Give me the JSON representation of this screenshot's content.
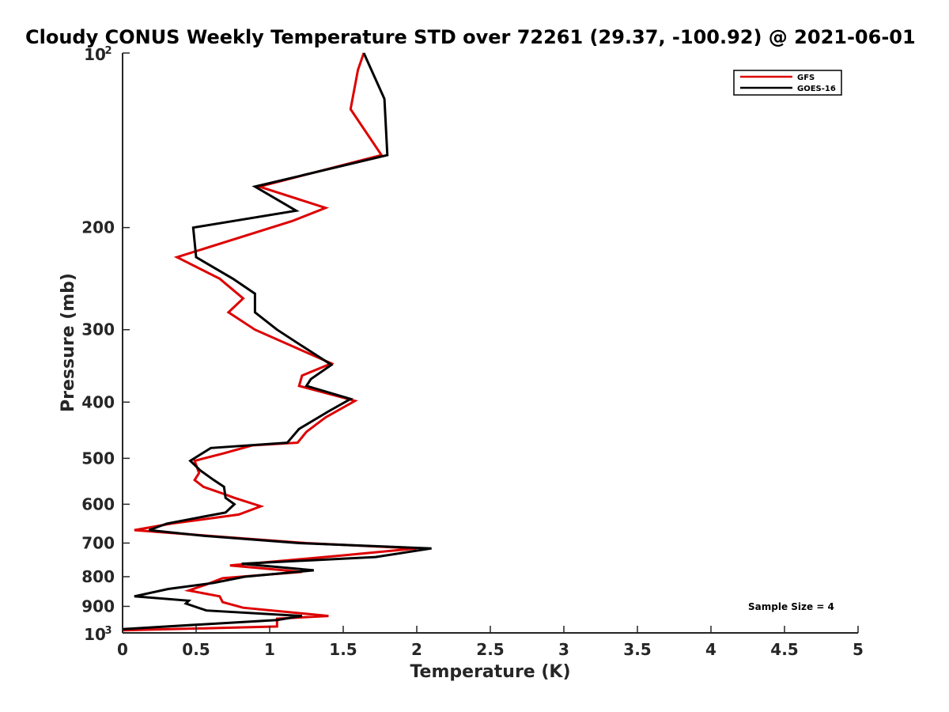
{
  "chart_data": {
    "type": "line",
    "title": "Cloudy CONUS Weekly Temperature STD over 72261 (29.37, -100.92) @ 2021-06-01",
    "xlabel": "Temperature (K)",
    "ylabel": "Pressure (mb)",
    "xlim": [
      0,
      5
    ],
    "ylim": [
      100,
      1000
    ],
    "y_scale": "log",
    "y_reversed": true,
    "x_ticks": [
      "0",
      "0.5",
      "1",
      "1.5",
      "2",
      "2.5",
      "3",
      "3.5",
      "4",
      "4.5",
      "5"
    ],
    "x_tick_values": [
      0,
      0.5,
      1,
      1.5,
      2,
      2.5,
      3,
      3.5,
      4,
      4.5,
      5
    ],
    "y_ticks": [
      {
        "value": 100,
        "base": "10",
        "exp": "2"
      },
      {
        "value": 200,
        "label": "200"
      },
      {
        "value": 300,
        "label": "300"
      },
      {
        "value": 400,
        "label": "400"
      },
      {
        "value": 500,
        "label": "500"
      },
      {
        "value": 600,
        "label": "600"
      },
      {
        "value": 700,
        "label": "700"
      },
      {
        "value": 800,
        "label": "800"
      },
      {
        "value": 900,
        "label": "900"
      },
      {
        "value": 1000,
        "base": "10",
        "exp": "3"
      }
    ],
    "grid": false,
    "legend_position": "top-right",
    "annotation": "Sample Size = 4",
    "series": [
      {
        "name": "GFS",
        "color": "#dd0000",
        "points": [
          [
            1.64,
            100
          ],
          [
            1.6,
            107
          ],
          [
            1.55,
            125
          ],
          [
            1.76,
            150
          ],
          [
            0.93,
            170
          ],
          [
            1.38,
            185
          ],
          [
            1.15,
            195
          ],
          [
            0.37,
            225
          ],
          [
            0.66,
            245
          ],
          [
            0.82,
            265
          ],
          [
            0.72,
            280
          ],
          [
            0.9,
            300
          ],
          [
            1.15,
            320
          ],
          [
            1.42,
            343
          ],
          [
            1.22,
            360
          ],
          [
            1.2,
            375
          ],
          [
            1.58,
            398
          ],
          [
            1.38,
            425
          ],
          [
            1.25,
            450
          ],
          [
            1.19,
            470
          ],
          [
            0.88,
            475
          ],
          [
            0.69,
            490
          ],
          [
            0.49,
            505
          ],
          [
            0.52,
            530
          ],
          [
            0.49,
            545
          ],
          [
            0.55,
            560
          ],
          [
            0.68,
            575
          ],
          [
            0.76,
            585
          ],
          [
            0.94,
            605
          ],
          [
            0.79,
            625
          ],
          [
            0.33,
            648
          ],
          [
            0.08,
            665
          ],
          [
            0.58,
            680
          ],
          [
            1.25,
            700
          ],
          [
            2.0,
            715
          ],
          [
            1.5,
            735
          ],
          [
            0.73,
            765
          ],
          [
            1.22,
            785
          ],
          [
            0.68,
            805
          ],
          [
            0.57,
            825
          ],
          [
            0.45,
            845
          ],
          [
            0.66,
            865
          ],
          [
            0.68,
            885
          ],
          [
            0.82,
            905
          ],
          [
            1.4,
            935
          ],
          [
            1.05,
            945
          ],
          [
            1.05,
            975
          ],
          [
            0.0,
            990
          ]
        ]
      },
      {
        "name": "GOES-16",
        "color": "#000000",
        "points": [
          [
            1.64,
            100
          ],
          [
            1.78,
            120
          ],
          [
            1.8,
            150
          ],
          [
            0.9,
            170
          ],
          [
            1.18,
            187
          ],
          [
            0.48,
            200
          ],
          [
            0.5,
            225
          ],
          [
            0.75,
            245
          ],
          [
            0.9,
            260
          ],
          [
            0.9,
            280
          ],
          [
            1.05,
            300
          ],
          [
            1.22,
            320
          ],
          [
            1.42,
            345
          ],
          [
            1.28,
            365
          ],
          [
            1.25,
            375
          ],
          [
            1.55,
            395
          ],
          [
            1.4,
            415
          ],
          [
            1.2,
            445
          ],
          [
            1.12,
            470
          ],
          [
            0.6,
            480
          ],
          [
            0.46,
            505
          ],
          [
            0.53,
            525
          ],
          [
            0.62,
            545
          ],
          [
            0.69,
            560
          ],
          [
            0.7,
            585
          ],
          [
            0.76,
            600
          ],
          [
            0.7,
            620
          ],
          [
            0.3,
            648
          ],
          [
            0.18,
            665
          ],
          [
            0.55,
            680
          ],
          [
            1.2,
            700
          ],
          [
            2.1,
            715
          ],
          [
            1.72,
            740
          ],
          [
            0.81,
            760
          ],
          [
            1.3,
            780
          ],
          [
            0.83,
            800
          ],
          [
            0.62,
            820
          ],
          [
            0.31,
            840
          ],
          [
            0.08,
            865
          ],
          [
            0.45,
            880
          ],
          [
            0.43,
            890
          ],
          [
            0.57,
            915
          ],
          [
            1.22,
            935
          ],
          [
            1.05,
            950
          ],
          [
            0.0,
            985
          ]
        ]
      }
    ]
  }
}
